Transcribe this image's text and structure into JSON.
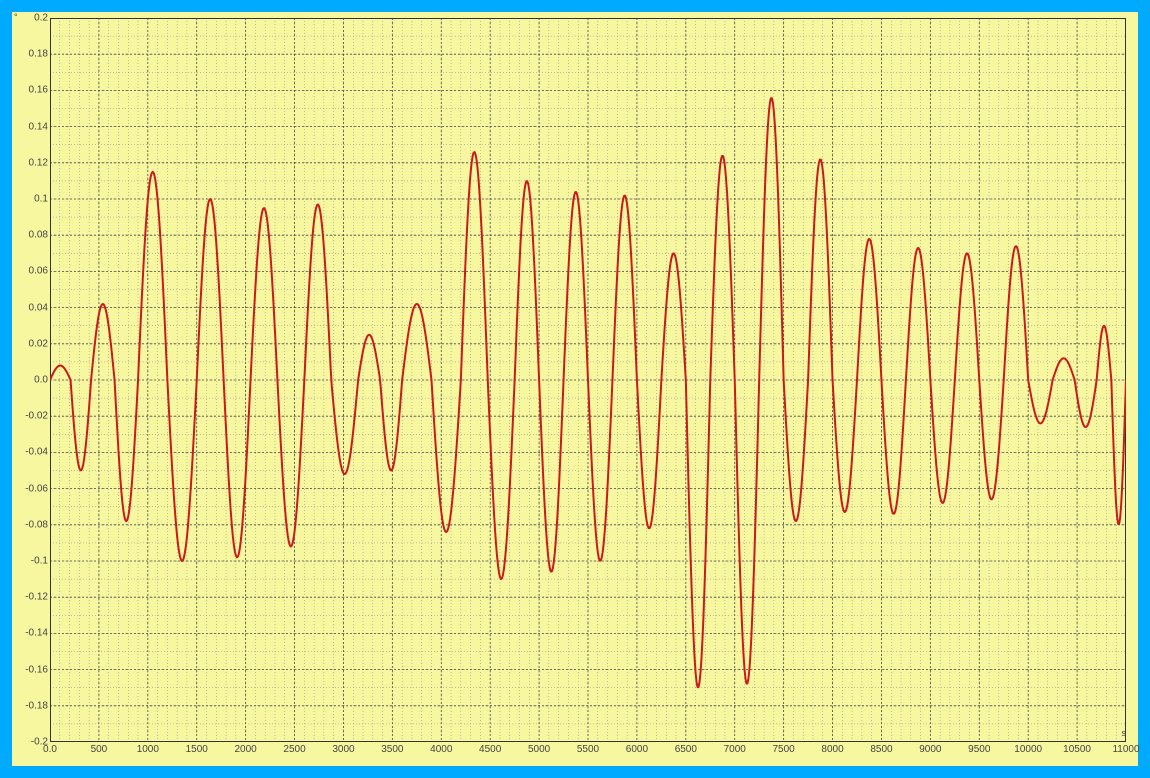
{
  "chart": {
    "type": "line",
    "background_color": "#f7f7a0",
    "frame_border_color": "#00aaff",
    "frame_border_width": 12,
    "grid_major_color": "#4a4a4a",
    "grid_minor_color": "#8a8a8a",
    "grid_major_dash": "2,2",
    "grid_minor_dash": "1,2",
    "line_color": "#cc1a1a",
    "line_width": 2,
    "axis_font_size": 10,
    "x_axis": {
      "min": 0,
      "max": 11000,
      "major_step": 500,
      "minor_step": 100,
      "unit_label": "s",
      "tick_labels": [
        "0.0",
        "500",
        "1000",
        "1500",
        "2000",
        "2500",
        "3000",
        "3500",
        "4000",
        "4500",
        "5000",
        "5500",
        "6000",
        "6500",
        "7000",
        "7500",
        "8000",
        "8500",
        "9000",
        "9500",
        "10000",
        "10500",
        "11000"
      ]
    },
    "y_axis": {
      "min": -0.2,
      "max": 0.2,
      "major_step": 0.02,
      "minor_step": 0.01,
      "unit_label": "°",
      "tick_labels": [
        "-0.2",
        "-0.18",
        "-0.16",
        "-0.14",
        "-0.12",
        "-0.1",
        "-0.08",
        "-0.06",
        "-0.04",
        "-0.02",
        "0.0",
        "0.02",
        "0.04",
        "0.06",
        "0.08",
        "0.1",
        "0.12",
        "0.14",
        "0.16",
        "0.18",
        "0.2"
      ]
    },
    "series": {
      "cycles": [
        {
          "x_start": 0,
          "x_end": 420,
          "amp_pos": 0.008,
          "amp_neg": -0.05
        },
        {
          "x_start": 420,
          "x_end": 900,
          "amp_pos": 0.042,
          "amp_neg": -0.078
        },
        {
          "x_start": 900,
          "x_end": 1500,
          "amp_pos": 0.115,
          "amp_neg": -0.1
        },
        {
          "x_start": 1500,
          "x_end": 2050,
          "amp_pos": 0.1,
          "amp_neg": -0.098
        },
        {
          "x_start": 2050,
          "x_end": 2600,
          "amp_pos": 0.095,
          "amp_neg": -0.092
        },
        {
          "x_start": 2600,
          "x_end": 3150,
          "amp_pos": 0.097,
          "amp_neg": -0.052
        },
        {
          "x_start": 3150,
          "x_end": 3600,
          "amp_pos": 0.025,
          "amp_neg": -0.05
        },
        {
          "x_start": 3600,
          "x_end": 4200,
          "amp_pos": 0.042,
          "amp_neg": -0.084
        },
        {
          "x_start": 4200,
          "x_end": 4750,
          "amp_pos": 0.126,
          "amp_neg": -0.11
        },
        {
          "x_start": 4750,
          "x_end": 5250,
          "amp_pos": 0.11,
          "amp_neg": -0.106
        },
        {
          "x_start": 5250,
          "x_end": 5750,
          "amp_pos": 0.104,
          "amp_neg": -0.1
        },
        {
          "x_start": 5750,
          "x_end": 6250,
          "amp_pos": 0.102,
          "amp_neg": -0.082
        },
        {
          "x_start": 6250,
          "x_end": 6750,
          "amp_pos": 0.07,
          "amp_neg": -0.17
        },
        {
          "x_start": 6750,
          "x_end": 7250,
          "amp_pos": 0.124,
          "amp_neg": -0.168
        },
        {
          "x_start": 7250,
          "x_end": 7750,
          "amp_pos": 0.156,
          "amp_neg": -0.078
        },
        {
          "x_start": 7750,
          "x_end": 8250,
          "amp_pos": 0.122,
          "amp_neg": -0.073
        },
        {
          "x_start": 8250,
          "x_end": 8750,
          "amp_pos": 0.078,
          "amp_neg": -0.074
        },
        {
          "x_start": 8750,
          "x_end": 9250,
          "amp_pos": 0.073,
          "amp_neg": -0.068
        },
        {
          "x_start": 9250,
          "x_end": 9750,
          "amp_pos": 0.07,
          "amp_neg": -0.066
        },
        {
          "x_start": 9750,
          "x_end": 10250,
          "amp_pos": 0.074,
          "amp_neg": -0.024
        },
        {
          "x_start": 10250,
          "x_end": 10700,
          "amp_pos": 0.012,
          "amp_neg": -0.026
        },
        {
          "x_start": 10700,
          "x_end": 11000,
          "amp_pos": 0.03,
          "amp_neg": -0.08
        }
      ]
    }
  }
}
